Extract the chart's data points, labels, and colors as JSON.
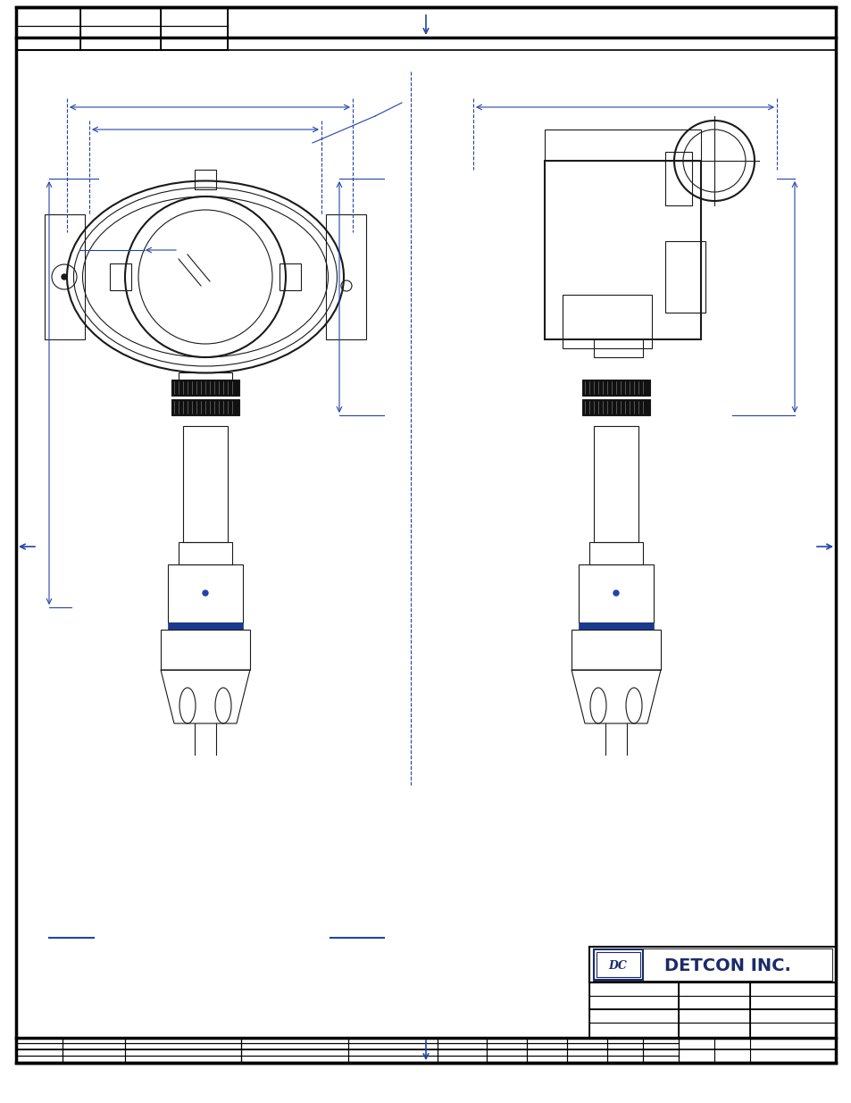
{
  "page_bg": "#ffffff",
  "border_color": "#000000",
  "blue_color": "#1f3a8f",
  "dark_blue": "#1a2b6b",
  "drawing_line_color": "#1a1a1a",
  "dim_line_color": "#2244aa",
  "title": "DETCON INC.",
  "page_width": 9.54,
  "page_height": 12.35,
  "dpi": 100
}
